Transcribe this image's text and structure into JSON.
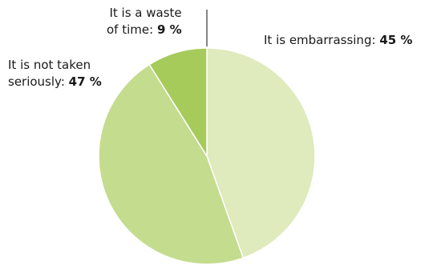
{
  "chart_data": {
    "type": "pie",
    "title": "",
    "slices": [
      {
        "label": "It is embarrassing:",
        "value": 45,
        "value_label": "45 %",
        "color": "#dfeabd"
      },
      {
        "label_lines": [
          "It is not taken",
          "seriously:"
        ],
        "value": 47,
        "value_label": "47 %",
        "color": "#c4dc8e"
      },
      {
        "label_lines": [
          "It is a waste",
          "of time:"
        ],
        "value": 9,
        "value_label": "9 %",
        "color": "#a6cb5b"
      }
    ],
    "start_angle_deg": 0,
    "direction": "clockwise"
  }
}
